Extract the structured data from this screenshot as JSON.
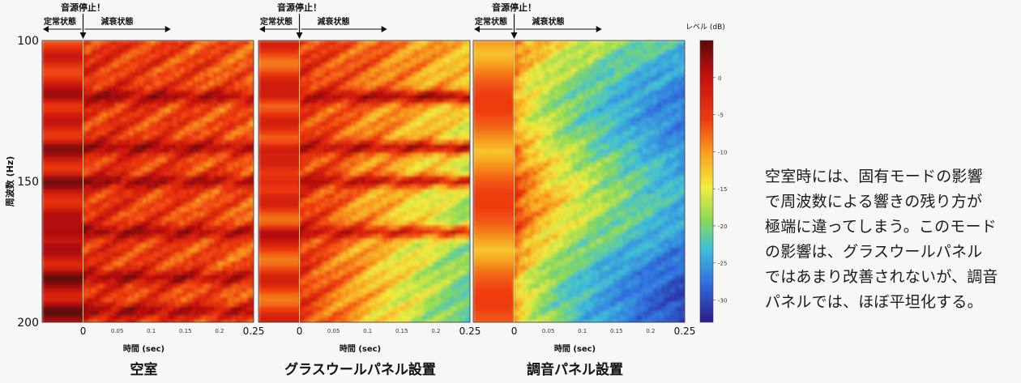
{
  "chart_data": {
    "type": "heatmap",
    "ylabel": "周波数 (Hz)",
    "y_ticks": [
      100,
      150,
      200
    ],
    "ylim": [
      100,
      200
    ],
    "xlim": [
      -0.06,
      0.25
    ],
    "x_ticks_major": [
      "0",
      "0.25"
    ],
    "x_ticks_minor": [
      "0.05",
      "0.1",
      "0.15",
      "0.2"
    ],
    "xlabel": "時間 (sec)",
    "colorbar": {
      "label": "レベル (dB)",
      "ticks": [
        "0",
        "-5",
        "-10",
        "-15",
        "-20",
        "-25",
        "-30"
      ],
      "range": [
        5,
        -33
      ]
    },
    "panels": [
      {
        "id": "empty",
        "title": "空室",
        "annotations": {
          "stop": "音源停止！",
          "steady": "定常状態",
          "decay": "減衰状態"
        },
        "steady_level_db": -3,
        "residual_level_db": -2,
        "modes_hz": [
          120,
          138,
          150,
          168,
          184,
          196
        ]
      },
      {
        "id": "glasswool",
        "title": "グラスウールパネル設置",
        "annotations": {
          "stop": "音源停止！",
          "steady": "定常状態",
          "decay": "減衰状態"
        },
        "steady_level_db": -4,
        "residual_level_db": -14,
        "modes_hz": [
          120,
          138,
          150,
          168
        ]
      },
      {
        "id": "tuned",
        "title": "調音パネル設置",
        "annotations": {
          "stop": "音源停止！",
          "steady": "定常状態",
          "decay": "減衰状態"
        },
        "steady_level_db": -6,
        "residual_level_db": -25,
        "modes_hz": []
      }
    ]
  },
  "caption": {
    "lines": [
      "空室時には、固有モードの影響",
      "で周波数による響きの残り方が",
      "極端に違ってしまう。このモード",
      "の影響は、グラスウールパネル",
      "ではあまり改善されないが、調音",
      "パネルでは、ほぼ平坦化する。"
    ]
  }
}
